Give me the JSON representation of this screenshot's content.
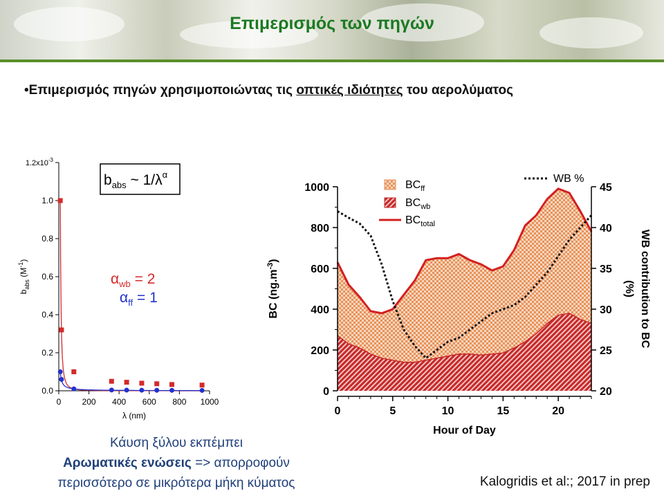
{
  "slide": {
    "title": "Επιμερισμός των πηγών",
    "bullet_prefix": "•Επιμερισμός πηγών χρησιμοποιώντας τις ",
    "bullet_emphasis": "οπτικές ιδιότητες",
    "bullet_suffix": " του αερολύματος",
    "caption_line1": "Κάυση ξύλου εκπέμπει",
    "caption_bold": "Αρωματικές ενώσεις",
    "caption_line2_rest": " => απορροφούν",
    "caption_line3": "περισσότερο σε μικρότερα μήκη κύματος",
    "citation": "Kalogridis et al:; 2017 in prep",
    "colors": {
      "title": "#1a7a22",
      "rule": "#5a8f2b",
      "caption": "#1f3f7a"
    }
  },
  "chart_data": [
    {
      "type": "scatter",
      "xlabel": "λ (nm)",
      "ylabel_main": "b",
      "ylabel_sub": "abs",
      "ylabel_unit": " (M",
      "ylabel_exp": "-1",
      "ylabel_close": ")",
      "xlim": [
        0,
        1000
      ],
      "ylim": [
        0,
        0.0012
      ],
      "x_ticks": [
        "0",
        "200",
        "400",
        "600",
        "800",
        "1000"
      ],
      "y_ticks": [
        "0.0",
        "0.2",
        "0.4",
        "0.6",
        "0.8",
        "1.0"
      ],
      "y_tick_values": [
        0,
        0.0002,
        0.0004,
        0.0006,
        0.0008,
        0.001
      ],
      "y_top_tick": "1.2x10",
      "y_top_exp": "-3",
      "formula_main": "b",
      "formula_sub": "abs",
      "formula_rest": " ~ 1/λ",
      "formula_exp": "α",
      "alpha_wb_label": "α",
      "alpha_wb_sub": "wb",
      "alpha_wb_value": "= 2",
      "alpha_ff_label": "α",
      "alpha_ff_sub": "ff",
      "alpha_ff_value": "= 1",
      "series": [
        {
          "color": "#d42a2a",
          "marker": "square",
          "x": [
            10,
            18,
            100,
            350,
            450,
            550,
            650,
            750,
            950
          ],
          "y": [
            0.001,
            0.00032,
            0.0001,
            5e-05,
            4.5e-05,
            4e-05,
            3.7e-05,
            3.3e-05,
            3e-05
          ]
        },
        {
          "color": "#2233cc",
          "marker": "circle",
          "x": [
            10,
            18,
            100,
            350,
            450,
            550,
            650,
            750,
            950
          ],
          "y": [
            0.0001,
            6e-05,
            1e-05,
            4e-06,
            3.5e-06,
            3e-06,
            2.8e-06,
            2.5e-06,
            2e-06
          ]
        }
      ]
    },
    {
      "type": "area",
      "xlabel": "Hour of Day",
      "ylabel_main": "BC (ng.m",
      "ylabel_exp": "-3",
      "ylabel_close": ")",
      "y2label_line1": "WB contribution to BC",
      "y2label_line2": "(%)",
      "xlim": [
        0,
        23
      ],
      "ylim": [
        0,
        1000
      ],
      "y2lim": [
        20,
        45
      ],
      "x_ticks": [
        "0",
        "5",
        "10",
        "15",
        "20"
      ],
      "y_ticks": [
        "0",
        "200",
        "400",
        "600",
        "800",
        "1000"
      ],
      "y2_ticks": [
        "20",
        "25",
        "30",
        "35",
        "40",
        "45"
      ],
      "legend": {
        "ff": "BC",
        "ff_sub": "ff",
        "wb": "BC",
        "wb_sub": "wb",
        "total": "BC",
        "total_sub": "total",
        "wb_pct": "WB %"
      },
      "colors": {
        "ff": "#e8925a",
        "wb": "#c62828",
        "total": "#d32020",
        "wb_pct": "#111111"
      },
      "hours": [
        0,
        1,
        2,
        3,
        4,
        5,
        6,
        7,
        8,
        9,
        10,
        11,
        12,
        13,
        14,
        15,
        16,
        17,
        18,
        19,
        20,
        21,
        22,
        23
      ],
      "bc_total": [
        630,
        520,
        460,
        390,
        380,
        400,
        470,
        540,
        640,
        650,
        650,
        670,
        640,
        620,
        590,
        610,
        690,
        810,
        860,
        940,
        990,
        970,
        880,
        780
      ],
      "bc_wb": [
        270,
        230,
        210,
        180,
        160,
        150,
        140,
        140,
        150,
        160,
        170,
        180,
        180,
        175,
        180,
        185,
        210,
        240,
        280,
        330,
        370,
        380,
        350,
        330
      ],
      "wb_pct_x": [
        0,
        1,
        2,
        3,
        4,
        5,
        6,
        7,
        8,
        9,
        10,
        11,
        12,
        13,
        14,
        15,
        16,
        17,
        18,
        19,
        20,
        21,
        22,
        23
      ],
      "wb_pct": [
        42.0,
        41.2,
        40.5,
        39.0,
        35.5,
        31.0,
        27.5,
        25.5,
        24.0,
        25.0,
        26.0,
        26.5,
        27.5,
        28.5,
        29.5,
        30.0,
        30.5,
        31.5,
        33.0,
        34.5,
        36.5,
        38.5,
        40.0,
        41.5
      ]
    }
  ]
}
